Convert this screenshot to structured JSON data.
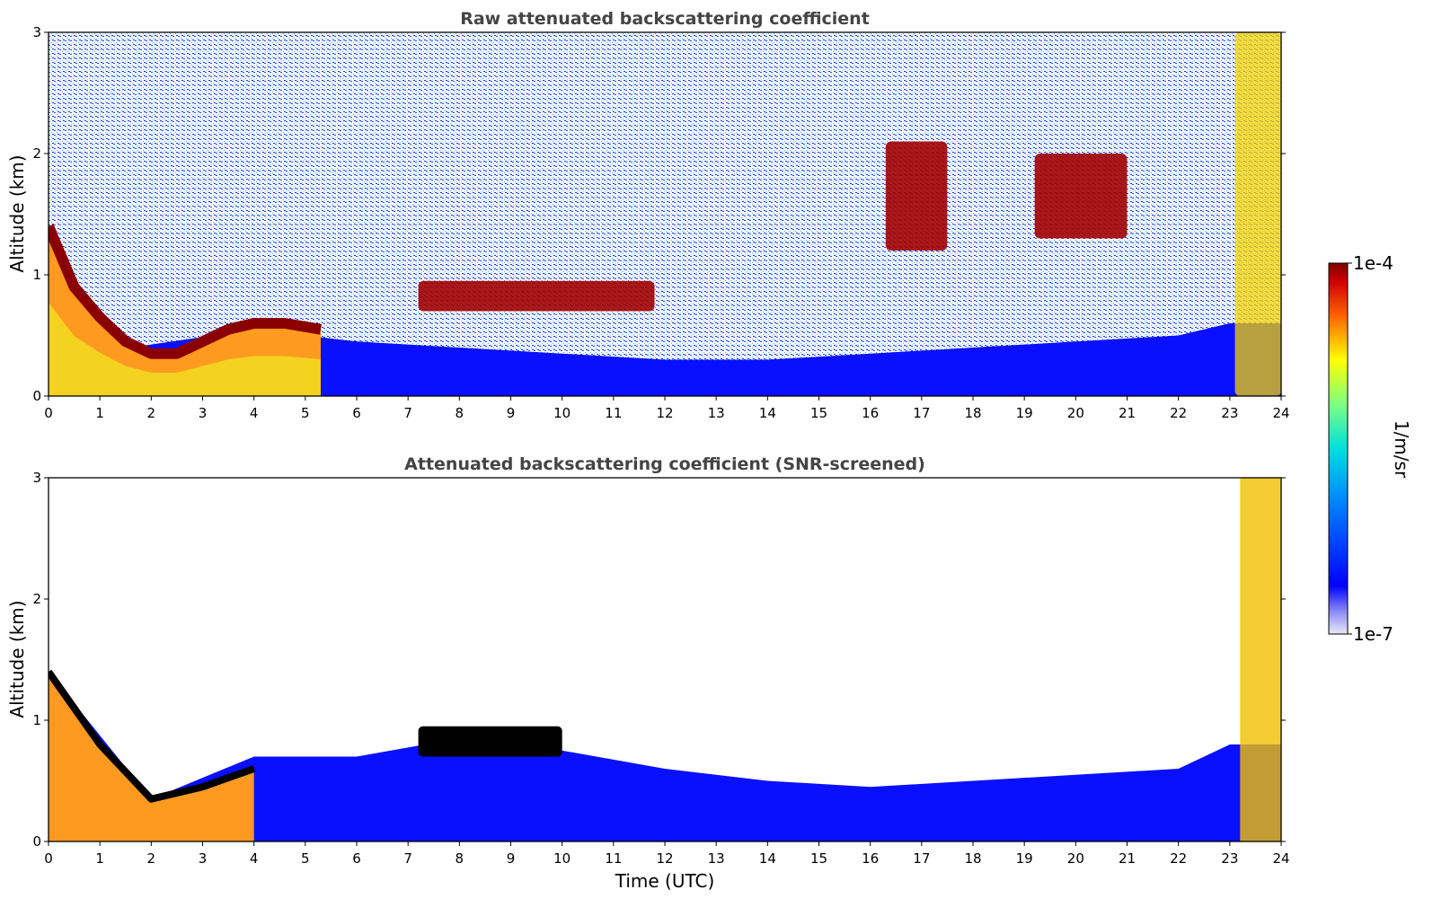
{
  "chart_data": [
    {
      "type": "heatmap",
      "title": "Raw attenuated backscattering coefficient",
      "xlabel": "",
      "ylabel": "Altitude (km)",
      "xlim": [
        0,
        24
      ],
      "ylim": [
        0,
        3
      ],
      "x_ticks": [
        "0",
        "1",
        "2",
        "3",
        "4",
        "5",
        "6",
        "7",
        "8",
        "9",
        "10",
        "11",
        "12",
        "13",
        "14",
        "15",
        "16",
        "17",
        "18",
        "19",
        "20",
        "21",
        "22",
        "23",
        "24"
      ],
      "y_ticks": [
        "0",
        "1",
        "2",
        "3"
      ],
      "colormap": "jet",
      "grid": false,
      "features": [
        {
          "feature": "aerosol boundary layer top",
          "time": [
            0,
            0.5,
            1,
            1.5,
            2,
            2.5,
            3,
            3.5,
            4,
            4.6,
            5.3
          ],
          "altitude_km": [
            1.4,
            0.9,
            0.65,
            0.45,
            0.35,
            0.35,
            0.45,
            0.55,
            0.6,
            0.6,
            0.55
          ]
        },
        {
          "feature": "cloud layer",
          "time_start": 7.2,
          "time_end": 11.8,
          "altitude_km": [
            0.7,
            0.95
          ]
        },
        {
          "feature": "cloud",
          "time_start": 16.3,
          "time_end": 17.5,
          "altitude_km": [
            1.2,
            2.1
          ]
        },
        {
          "feature": "cloud",
          "time_start": 19.2,
          "time_end": 21.0,
          "altitude_km": [
            1.3,
            2.0
          ]
        },
        {
          "feature": "precipitation / cloud",
          "time_start": 23.1,
          "time_end": 24.0,
          "altitude_km": [
            0.0,
            3.0
          ]
        }
      ]
    },
    {
      "type": "heatmap",
      "title": "Attenuated backscattering coefficient (SNR-screened)",
      "xlabel": "Time (UTC)",
      "ylabel": "Altitude (km)",
      "xlim": [
        0,
        24
      ],
      "ylim": [
        0,
        3
      ],
      "x_ticks": [
        "0",
        "1",
        "2",
        "3",
        "4",
        "5",
        "6",
        "7",
        "8",
        "9",
        "10",
        "11",
        "12",
        "13",
        "14",
        "15",
        "16",
        "17",
        "18",
        "19",
        "20",
        "21",
        "22",
        "23",
        "24"
      ],
      "y_ticks": [
        "0",
        "1",
        "2",
        "3"
      ],
      "colormap": "jet",
      "grid": false,
      "features": [
        {
          "feature": "screened boundary layer top",
          "time": [
            0,
            2,
            4,
            6,
            8,
            10,
            12,
            14,
            16,
            18,
            20,
            22,
            23
          ],
          "altitude_km": [
            1.4,
            0.35,
            0.7,
            0.7,
            0.85,
            0.75,
            0.6,
            0.5,
            0.45,
            0.5,
            0.55,
            0.6,
            0.8
          ]
        }
      ]
    }
  ],
  "colorbar": {
    "label": "1/m/sr",
    "max_label": "1e-4",
    "min_label": "1e-7",
    "scale": "log",
    "colormap": "jet"
  }
}
